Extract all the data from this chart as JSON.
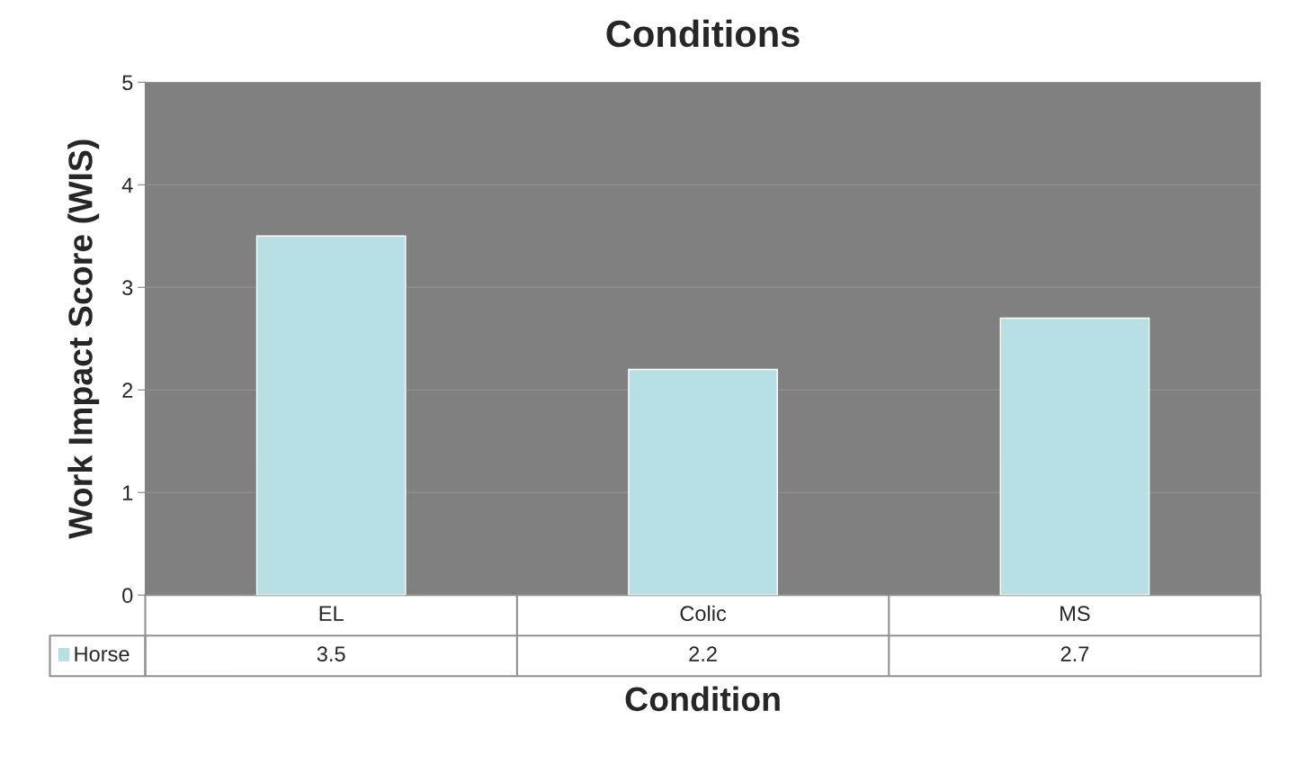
{
  "chart_data": {
    "type": "bar",
    "title": "Conditions",
    "xlabel": "Condition",
    "ylabel": "Work Impact Score (WIS)",
    "categories": [
      "EL",
      "Colic",
      "MS"
    ],
    "series": [
      {
        "name": "Horse",
        "color": "#b8dfe3",
        "values": [
          3.5,
          2.2,
          2.7
        ]
      }
    ],
    "ylim": [
      0,
      5
    ],
    "yticks": [
      0,
      1,
      2,
      3,
      4,
      5
    ],
    "grid": "y",
    "data_labels": true,
    "legend": "bottom"
  }
}
